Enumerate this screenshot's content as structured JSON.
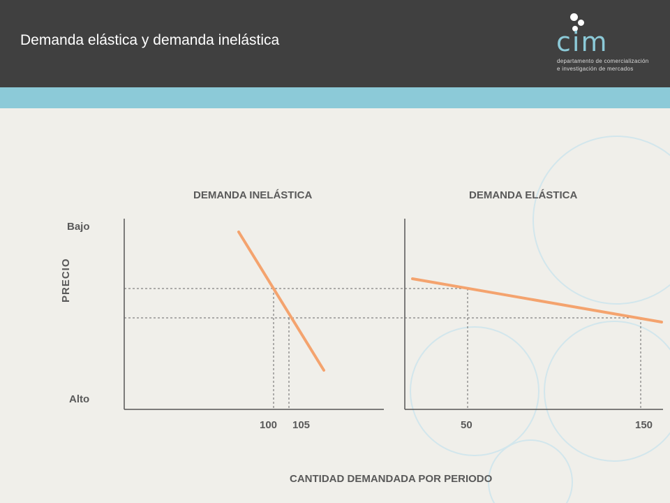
{
  "header": {
    "title": "Demanda elástica y demanda inelástica",
    "logo_word": "cim",
    "logo_line1": "departamento de comercialización",
    "logo_line2": "e investigación de mercados"
  },
  "colors": {
    "header_bg": "#404040",
    "band": "#8ccad8",
    "background": "#f0efea",
    "demand_line": "#f4a36e",
    "text": "#595959"
  },
  "diagram": {
    "left_panel": {
      "title": "DEMANDA INELÁSTICA",
      "ticks": [
        "100",
        "105"
      ]
    },
    "right_panel": {
      "title": "DEMANDA ELÁSTICA",
      "ticks": [
        "50",
        "150"
      ]
    },
    "y_axis": {
      "label": "PRECIO",
      "top_label": "Bajo",
      "bottom_label": "Alto"
    },
    "x_axis_label": "CANTIDAD DEMANDADA POR PERIODO"
  },
  "chart_data": [
    {
      "type": "line",
      "title": "DEMANDA INELÁSTICA",
      "x_ticks": [
        100,
        105
      ],
      "guides": [
        {
          "quantity": 100
        },
        {
          "quantity": 105
        }
      ]
    },
    {
      "type": "line",
      "title": "DEMANDA ELÁSTICA",
      "x_ticks": [
        50,
        150
      ],
      "guides": [
        {
          "quantity": 50
        },
        {
          "quantity": 150
        }
      ]
    }
  ]
}
